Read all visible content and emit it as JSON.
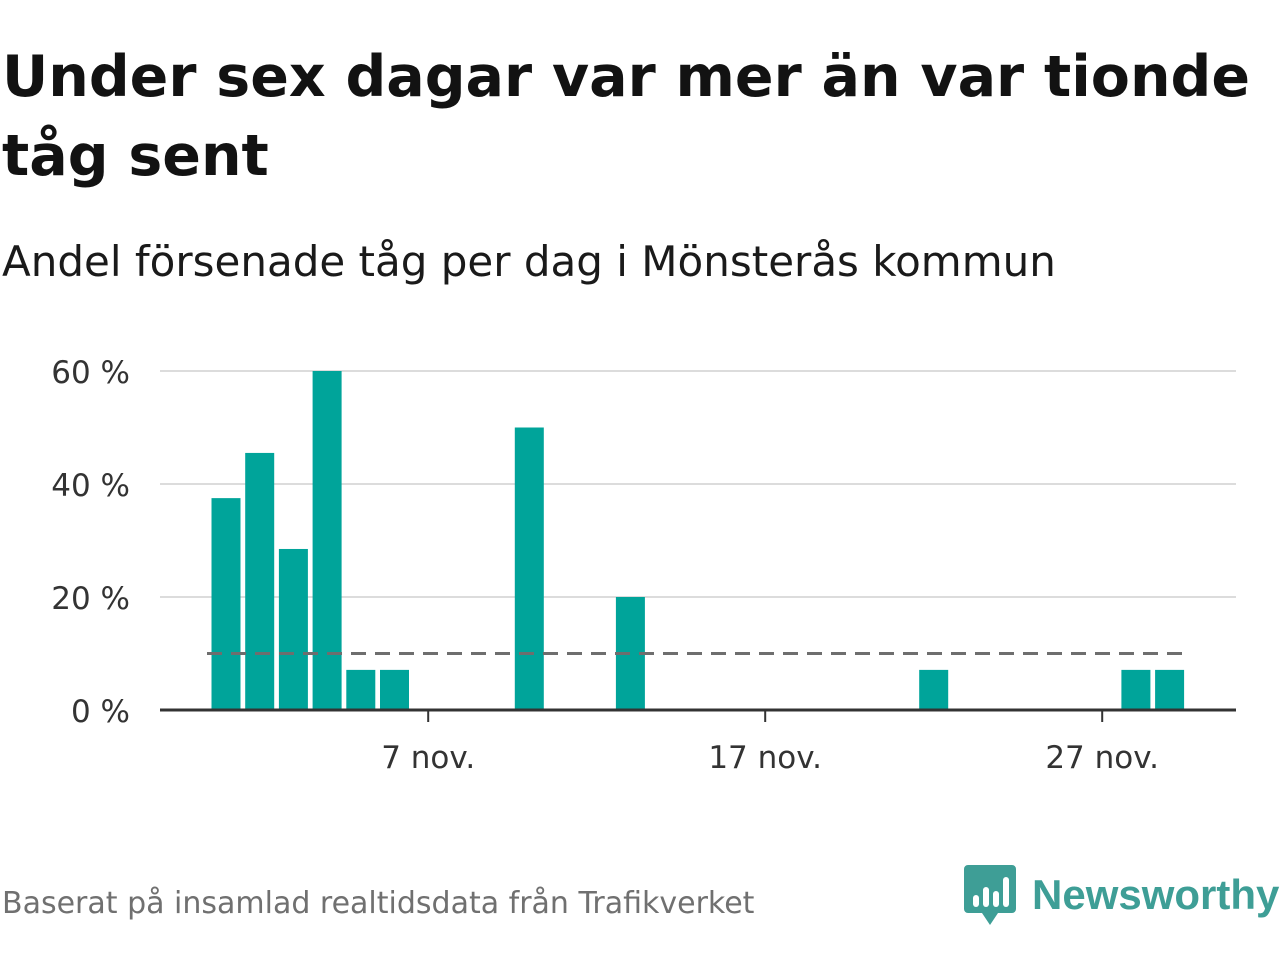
{
  "title": "Under sex dagar var mer än var tionde tåg sent",
  "subtitle": "Andel försenade tåg per dag i Mönsterås kommun",
  "source": "Baserat på insamlad realtidsdata från Trafikverket",
  "brand": {
    "name": "Newsworthy",
    "color": "#3e9e96"
  },
  "colors": {
    "bar": "#00a49a",
    "threshold_line": "#6e6e6e",
    "grid": "#dcdcdc",
    "axis": "#333333",
    "tick_text": "#333333"
  },
  "chart_data": {
    "type": "bar",
    "x_unit": "day of November",
    "x": [
      1,
      2,
      3,
      4,
      5,
      6,
      7,
      8,
      9,
      10,
      11,
      12,
      13,
      14,
      15,
      16,
      17,
      18,
      19,
      20,
      21,
      22,
      23,
      24,
      25,
      26,
      27,
      28,
      29,
      30
    ],
    "values": [
      37.5,
      45.5,
      28.5,
      60,
      7.1,
      7.1,
      null,
      null,
      null,
      50,
      null,
      null,
      20,
      null,
      null,
      null,
      null,
      null,
      null,
      null,
      null,
      7.1,
      null,
      null,
      null,
      null,
      null,
      7.1,
      7.1,
      null
    ],
    "ylim": [
      0,
      60
    ],
    "yticks": [
      {
        "value": 0,
        "label": "0 %"
      },
      {
        "value": 20,
        "label": "20 %"
      },
      {
        "value": 40,
        "label": "40 %"
      },
      {
        "value": 60,
        "label": "60 %"
      }
    ],
    "xticks": [
      {
        "value": 7,
        "label": "7 nov."
      },
      {
        "value": 17,
        "label": "17 nov."
      },
      {
        "value": 27,
        "label": "27 nov."
      }
    ],
    "reference_line": {
      "value": 10,
      "style": "dashed"
    },
    "grid": true,
    "legend": "none"
  }
}
